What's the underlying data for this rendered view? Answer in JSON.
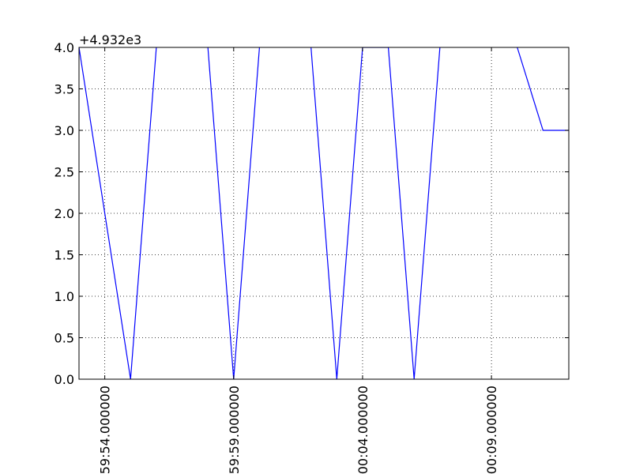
{
  "chart_data": {
    "type": "line",
    "y_offset_label": "+4.932e3",
    "x": [
      53,
      54,
      55,
      56,
      57,
      58,
      59,
      60,
      61,
      62,
      63,
      64,
      65,
      66,
      67,
      68,
      69,
      70,
      71,
      72
    ],
    "series": [
      {
        "color": "#0000ff",
        "values": [
          4,
          2,
          0,
          4,
          5,
          4,
          0,
          4,
          5,
          4,
          0,
          4,
          4,
          0,
          4,
          5,
          5,
          4,
          3,
          3
        ]
      }
    ],
    "xlim": [
      53,
      72
    ],
    "xticks": [
      {
        "value": 54,
        "label": "59:54.000000"
      },
      {
        "value": 59,
        "label": "59:59.000000"
      },
      {
        "value": 64,
        "label": "00:04.000000"
      },
      {
        "value": 69,
        "label": "00:09.000000"
      }
    ],
    "ylim": [
      0,
      4
    ],
    "yticks": [
      {
        "value": 0,
        "label": "0.0"
      },
      {
        "value": 0.5,
        "label": "0.5"
      },
      {
        "value": 1,
        "label": "1.0"
      },
      {
        "value": 1.5,
        "label": "1.5"
      },
      {
        "value": 2,
        "label": "2.0"
      },
      {
        "value": 2.5,
        "label": "2.5"
      },
      {
        "value": 3,
        "label": "3.0"
      },
      {
        "value": 3.5,
        "label": "3.5"
      },
      {
        "value": 4,
        "label": "4.0"
      }
    ],
    "grid": true
  }
}
